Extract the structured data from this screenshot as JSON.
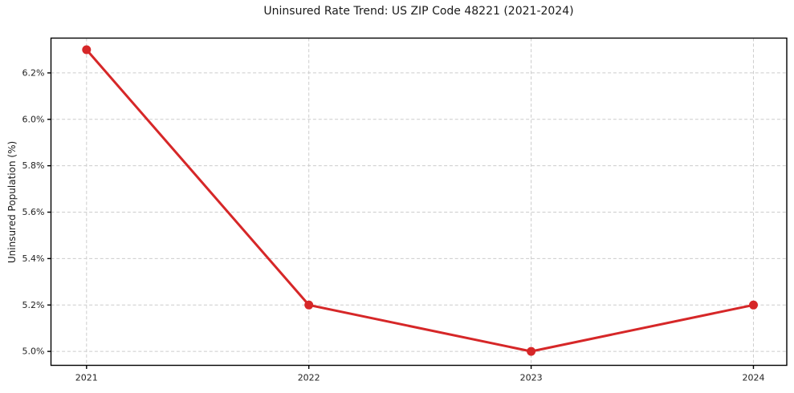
{
  "chart_data": {
    "type": "line",
    "title": "Uninsured Rate Trend: US ZIP Code 48221 (2021-2024)",
    "xlabel": "",
    "ylabel": "Uninsured Population (%)",
    "x": [
      2021,
      2022,
      2023,
      2024
    ],
    "values": [
      6.3,
      5.2,
      5.0,
      5.2
    ],
    "xticks": {
      "values": [
        2021,
        2022,
        2023,
        2024
      ],
      "labels": [
        "2021",
        "2022",
        "2023",
        "2024"
      ]
    },
    "yticks": {
      "values": [
        5.0,
        5.2,
        5.4,
        5.6,
        5.8,
        6.0,
        6.2
      ],
      "labels": [
        "5.0%",
        "5.2%",
        "5.4%",
        "5.6%",
        "5.8%",
        "6.0%",
        "6.2%"
      ]
    },
    "xlim": [
      2020.84,
      2024.15
    ],
    "ylim": [
      4.94,
      6.35
    ],
    "grid": {
      "visible": true,
      "style": "dashed",
      "color": "#cccccc"
    },
    "legend": {
      "visible": false
    },
    "marker": "circle",
    "colors": {
      "line": "#d62728",
      "spine": "#000000",
      "text": "#222222",
      "background": "#ffffff"
    }
  }
}
